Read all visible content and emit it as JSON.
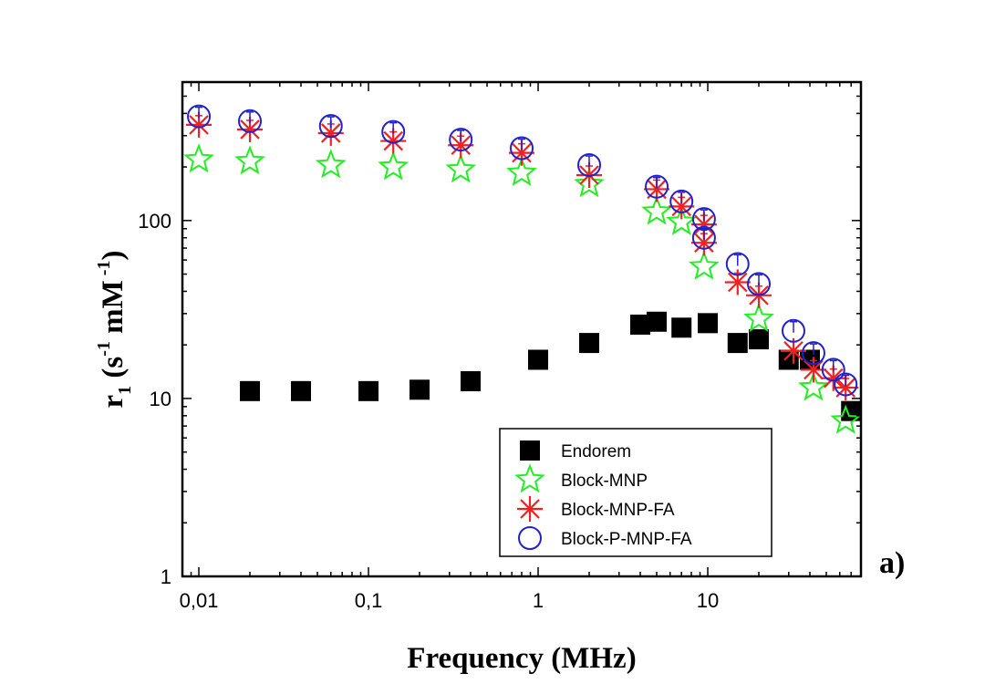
{
  "chart_data": {
    "type": "scatter",
    "xscale": "log",
    "yscale": "log",
    "xlim": [
      0.008,
      80
    ],
    "ylim": [
      1,
      600
    ],
    "xlabel": "Frequency (MHz)",
    "ylabel": {
      "base": "r",
      "sub": "1",
      "open": "(s",
      "sup1": "-1",
      "mid": " mM",
      "sup2": " -1",
      "close": ")"
    },
    "panel_label": "a)",
    "x_ticks": [
      {
        "value": 0.01,
        "label": "0,01"
      },
      {
        "value": 0.1,
        "label": "0,1"
      },
      {
        "value": 1,
        "label": "1"
      },
      {
        "value": 10,
        "label": "10"
      }
    ],
    "y_ticks": [
      {
        "value": 1,
        "label": "1"
      },
      {
        "value": 10,
        "label": "10"
      },
      {
        "value": 100,
        "label": "100"
      }
    ],
    "legend_position": "bottom-right",
    "series": [
      {
        "name": "Endorem",
        "marker": "square",
        "color": "#000000",
        "points": [
          [
            0.02,
            11
          ],
          [
            0.04,
            11
          ],
          [
            0.1,
            11
          ],
          [
            0.2,
            11.2
          ],
          [
            0.4,
            12.5
          ],
          [
            1,
            16.5
          ],
          [
            2,
            20.5
          ],
          [
            4,
            26
          ],
          [
            5,
            27
          ],
          [
            7,
            25
          ],
          [
            10,
            26.5
          ],
          [
            15,
            20.5
          ],
          [
            20,
            21.5
          ],
          [
            30,
            16.5
          ],
          [
            40,
            16.5
          ],
          [
            70,
            8.5
          ]
        ]
      },
      {
        "name": "Block-MNP",
        "marker": "star",
        "color": "#22ee22",
        "points": [
          [
            0.01,
            220
          ],
          [
            0.02,
            215
          ],
          [
            0.06,
            205
          ],
          [
            0.14,
            200
          ],
          [
            0.35,
            193
          ],
          [
            0.8,
            185
          ],
          [
            2,
            160
          ],
          [
            5,
            112
          ],
          [
            7,
            98
          ],
          [
            9.5,
            55
          ],
          [
            20,
            28
          ],
          [
            42,
            11.5
          ],
          [
            65,
            7.5
          ]
        ]
      },
      {
        "name": "Block-MNP-FA",
        "marker": "asterisk",
        "color": "#ee2222",
        "points": [
          [
            0.01,
            345
          ],
          [
            0.02,
            325
          ],
          [
            0.06,
            310
          ],
          [
            0.14,
            280
          ],
          [
            0.35,
            265
          ],
          [
            0.8,
            240
          ],
          [
            2,
            180
          ],
          [
            5,
            150
          ],
          [
            7,
            120
          ],
          [
            9.5,
            95
          ],
          [
            9.5,
            75
          ],
          [
            15,
            45
          ],
          [
            20,
            38
          ],
          [
            32,
            18.5
          ],
          [
            42,
            14.5
          ],
          [
            55,
            13
          ],
          [
            65,
            11.5
          ]
        ]
      },
      {
        "name": "Block-P-MNP-FA",
        "marker": "circle",
        "color": "#2222cc",
        "points": [
          [
            0.01,
            385
          ],
          [
            0.02,
            362
          ],
          [
            0.06,
            340
          ],
          [
            0.14,
            315
          ],
          [
            0.35,
            285
          ],
          [
            0.8,
            255
          ],
          [
            2,
            205
          ],
          [
            5,
            155
          ],
          [
            7,
            128
          ],
          [
            9.5,
            102
          ],
          [
            9.5,
            80
          ],
          [
            15,
            57
          ],
          [
            20,
            44
          ],
          [
            32,
            24
          ],
          [
            42,
            18
          ],
          [
            55,
            14.5
          ],
          [
            65,
            12
          ]
        ]
      }
    ]
  }
}
